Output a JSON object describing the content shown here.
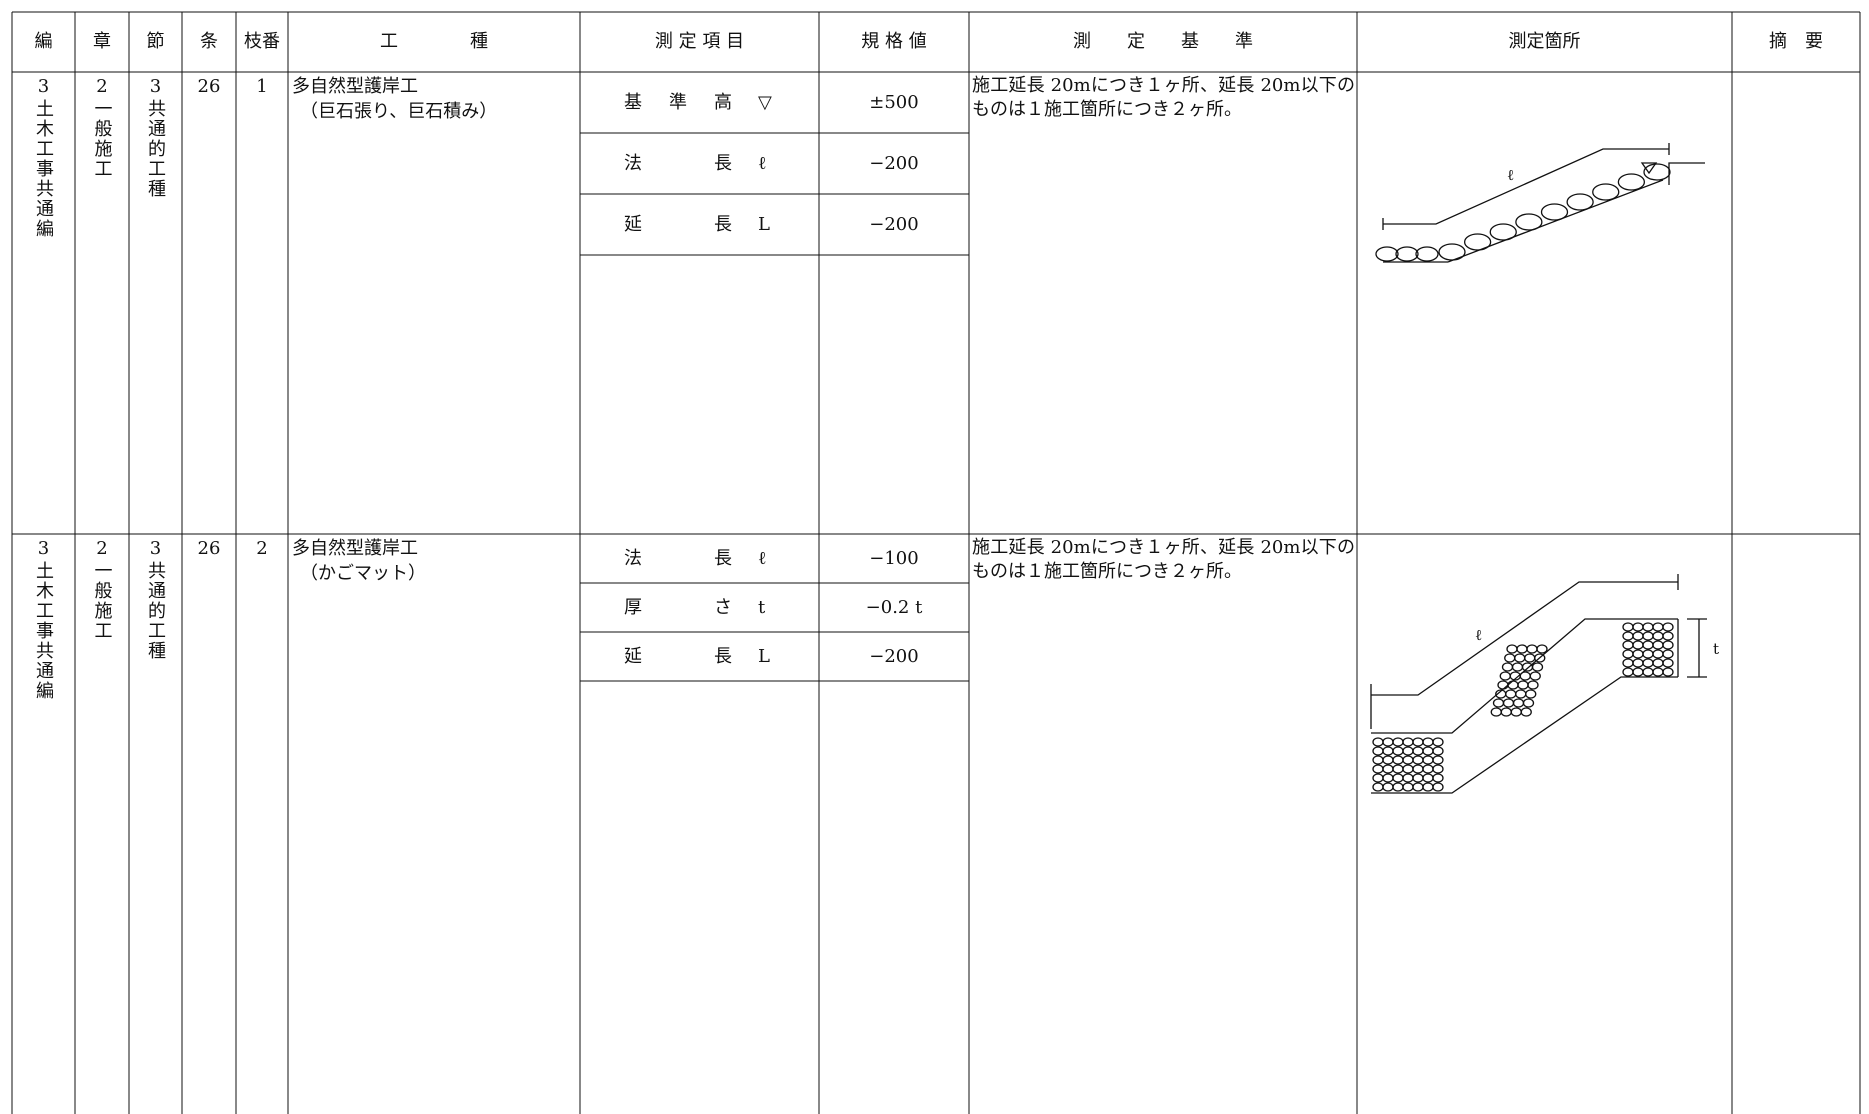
{
  "header": [
    "編",
    "章",
    "節",
    "条",
    "枝番",
    "工　　　　種",
    "測 定 項 目",
    "規 格 値",
    "測　　定　　基　　準",
    "測定箇所",
    "摘　要"
  ],
  "rows": [
    {
      "hen": "3",
      "hen_name": "土木工事共通編",
      "sho": "2",
      "sho_name": "一般施工",
      "setsu": "3",
      "setsu_name": "共通的工種",
      "jo": "26",
      "eda": "1",
      "kotei": "多自然型護岸工",
      "kotei_sub": "（巨石張り、巨石積み）",
      "items": [
        {
          "name": "基準高",
          "symbol": "▽",
          "value": "±500"
        },
        {
          "name": "法長",
          "symbol": "ℓ",
          "value": "−200"
        },
        {
          "name": "延長",
          "symbol": "L",
          "value": "−200"
        }
      ],
      "standard": "施工延長 20mにつき１ヶ所、延長 20m以下のものは１施工箇所につき２ヶ所。"
    },
    {
      "hen": "3",
      "hen_name": "土木工事共通編",
      "sho": "2",
      "sho_name": "一般施工",
      "setsu": "3",
      "setsu_name": "共通的工種",
      "jo": "26",
      "eda": "2",
      "kotei": "多自然型護岸工",
      "kotei_sub": "（かごマット）",
      "items": [
        {
          "name": "法長",
          "symbol": "ℓ",
          "value": "−100"
        },
        {
          "name": "厚さ",
          "symbol": "t",
          "value": "−0.2 t"
        },
        {
          "name": "延長",
          "symbol": "L",
          "value": "−200"
        }
      ],
      "standard": "施工延長 20mにつき１ヶ所、延長 20m以下のものは１施工箇所につき２ヶ所。"
    }
  ],
  "diagram_labels": {
    "slope_length_1": "ℓ",
    "slope_length_2": "ℓ",
    "thickness": "t"
  }
}
